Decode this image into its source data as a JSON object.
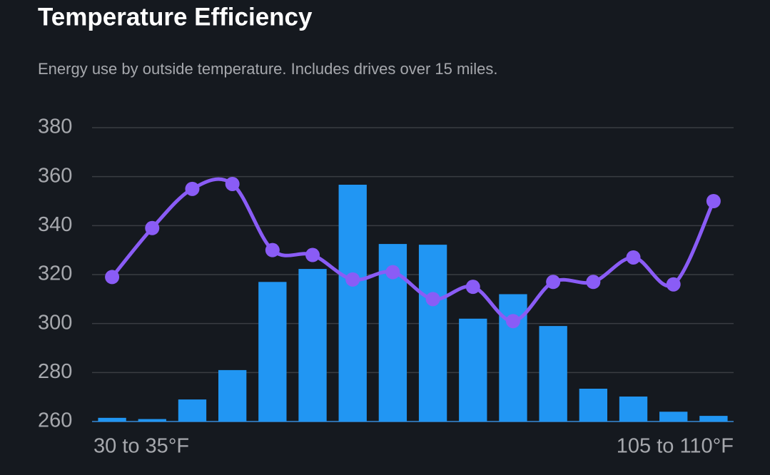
{
  "chart_data": {
    "type": "bar",
    "title": "Temperature Efficiency",
    "subtitle": "Energy use by outside temperature. Includes drives over 15 miles.",
    "categories": [
      "30 to 35°F",
      null,
      null,
      null,
      null,
      null,
      null,
      null,
      null,
      null,
      null,
      null,
      null,
      null,
      null,
      "105 to 110°F"
    ],
    "series": [
      {
        "type": "bar",
        "color": "#2196f3",
        "values": [
          261.5,
          261,
          269,
          281,
          317,
          322.3,
          356.7,
          332.5,
          332.2,
          302,
          312,
          299,
          273.4,
          270.2,
          264,
          262.3
        ]
      },
      {
        "type": "line",
        "color": "#8a5cf6",
        "values": [
          319,
          339,
          355,
          357,
          330,
          328,
          318,
          321,
          310,
          315,
          301,
          317,
          317,
          327,
          316,
          350
        ]
      }
    ],
    "ylim": [
      260,
      380
    ],
    "yticks": [
      260,
      280,
      300,
      320,
      340,
      360,
      380
    ],
    "grid": true
  }
}
